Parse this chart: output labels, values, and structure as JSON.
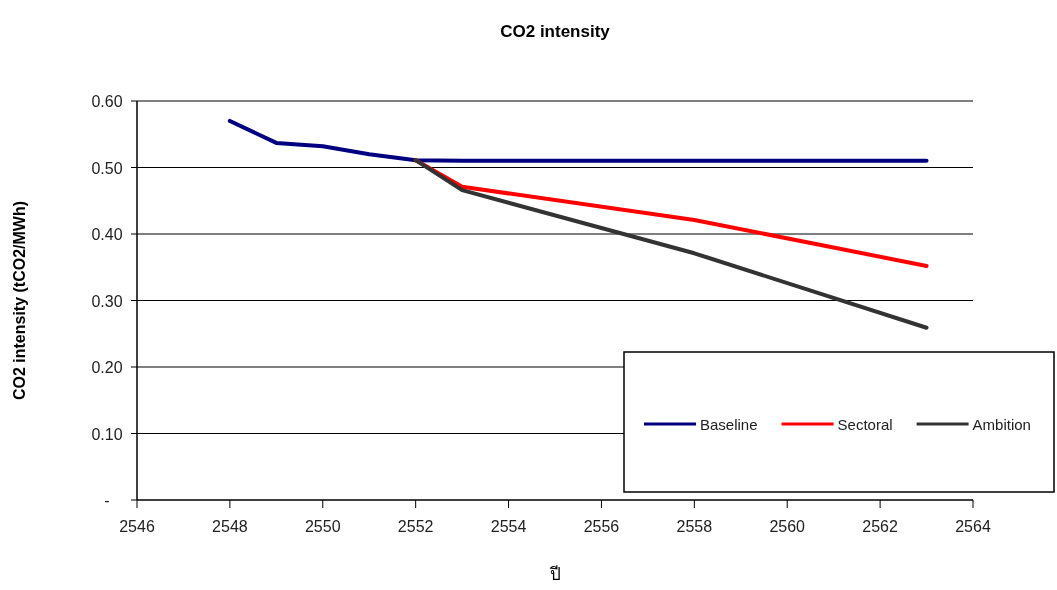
{
  "chart_data": {
    "type": "line",
    "title": "CO2 intensity",
    "xlabel": "ปี",
    "ylabel": "CO2 intensity  (tCO2/MWh)",
    "xlim": [
      2546,
      2564
    ],
    "xticks": [
      2546,
      2548,
      2550,
      2552,
      2554,
      2556,
      2558,
      2560,
      2562,
      2564
    ],
    "ylim": [
      0,
      0.6
    ],
    "yticks": [
      {
        "value": 0,
        "label": "-"
      },
      {
        "value": 0.1,
        "label": "0.10"
      },
      {
        "value": 0.2,
        "label": "0.20"
      },
      {
        "value": 0.3,
        "label": "0.30"
      },
      {
        "value": 0.4,
        "label": "0.40"
      },
      {
        "value": 0.5,
        "label": "0.50"
      },
      {
        "value": 0.6,
        "label": "0.60"
      }
    ],
    "grid": "y",
    "legend": "bottom right",
    "marker": "none",
    "line_style": "solid",
    "series": [
      {
        "name": "Baseline",
        "color": "#000080",
        "x": [
          2548,
          2549,
          2550,
          2551,
          2552,
          2553,
          2563
        ],
        "values": [
          0.57,
          0.537,
          0.532,
          0.52,
          0.511,
          0.51,
          0.51
        ]
      },
      {
        "name": "Sectoral",
        "color": "#ff0000",
        "x": [
          2552,
          2553,
          2558,
          2563
        ],
        "values": [
          0.511,
          0.471,
          0.421,
          0.352
        ]
      },
      {
        "name": "Ambition",
        "color": "#333333",
        "x": [
          2552,
          2553,
          2558,
          2563
        ],
        "values": [
          0.511,
          0.466,
          0.371,
          0.259
        ]
      }
    ]
  }
}
